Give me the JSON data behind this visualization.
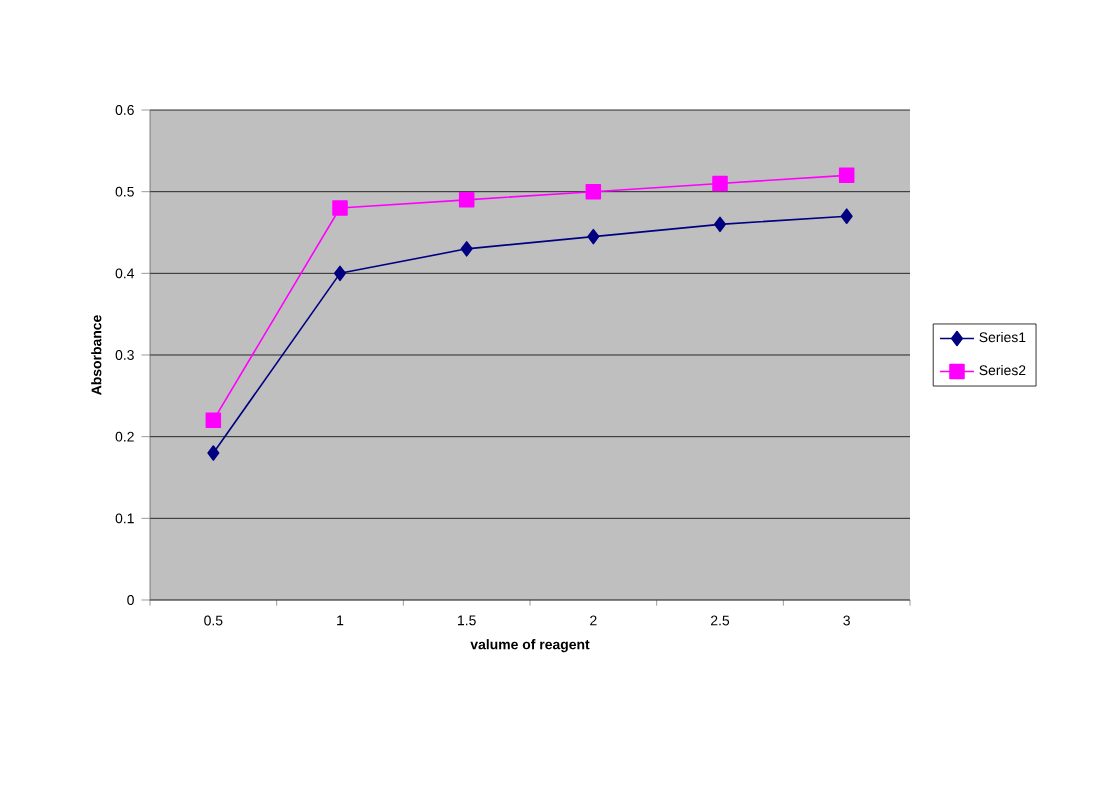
{
  "chart_data": {
    "type": "line",
    "xlabel": "valume of reagent",
    "ylabel": "Absorbance",
    "categories": [
      "0.5",
      "1",
      "1.5",
      "2",
      "2.5",
      "3"
    ],
    "series": [
      {
        "name": "Series1",
        "color": "#000080",
        "marker": "diamond",
        "values": [
          0.18,
          0.4,
          0.43,
          0.445,
          0.46,
          0.47
        ]
      },
      {
        "name": "Series2",
        "color": "#ff00ff",
        "marker": "square",
        "values": [
          0.22,
          0.48,
          0.49,
          0.5,
          0.51,
          0.52
        ]
      }
    ],
    "ylim": [
      0,
      0.6
    ],
    "yticks": [
      0,
      0.1,
      0.2,
      0.3,
      0.4,
      0.5,
      0.6
    ],
    "grid": "y",
    "legend": "right",
    "line_style": "solid"
  }
}
